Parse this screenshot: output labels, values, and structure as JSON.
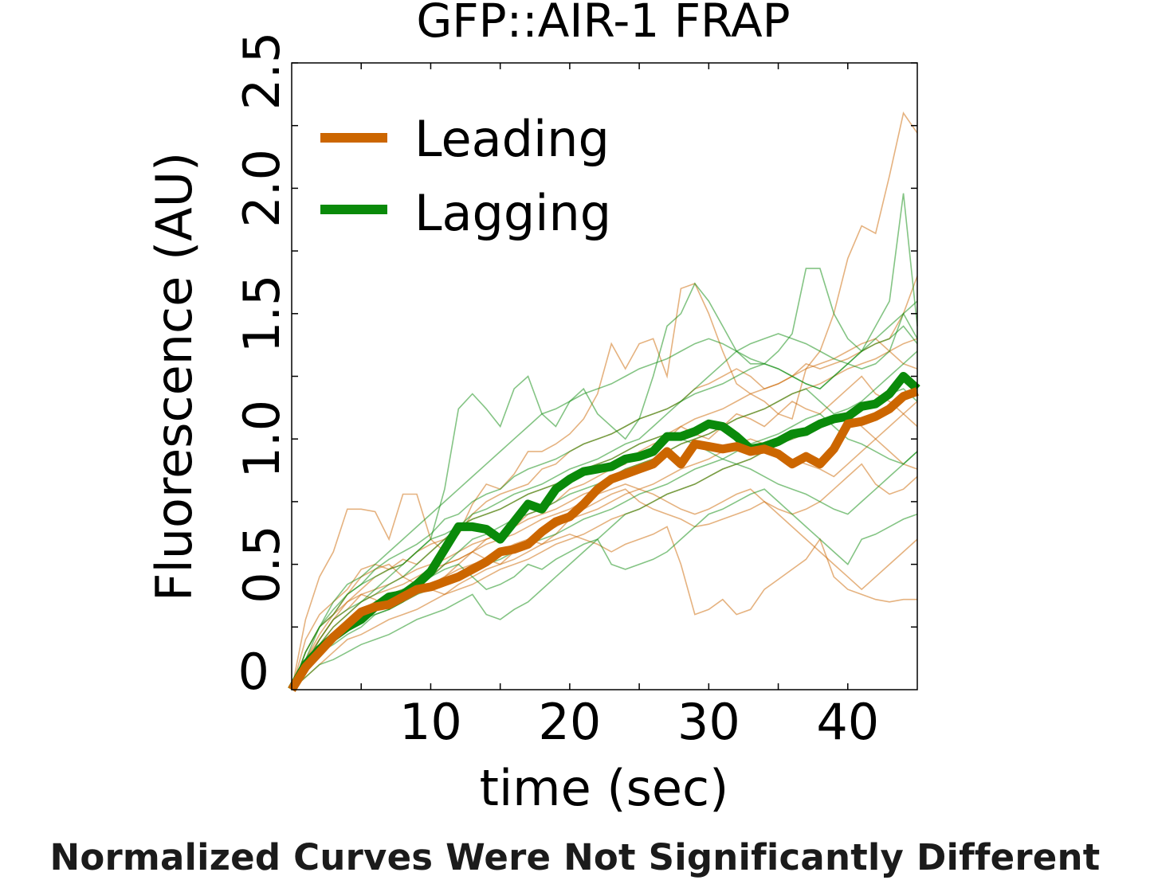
{
  "caption": "Normalized Curves Were Not Significantly Different",
  "chart_data": {
    "type": "line",
    "title": "GFP::AIR-1 FRAP",
    "xlabel": "time (sec)",
    "ylabel": "Fluorescence (AU)",
    "xlim": [
      0,
      45
    ],
    "ylim": [
      0,
      2.5
    ],
    "xticks": [
      10,
      20,
      30,
      40
    ],
    "xtick_labels": [
      "10",
      "20",
      "30",
      "40"
    ],
    "yticks": [
      0,
      0.5,
      1.0,
      1.5,
      2.0,
      2.5
    ],
    "ytick_labels": [
      "0",
      "0.5",
      "1.0",
      "1.5",
      "2.0",
      "2.5"
    ],
    "grid": false,
    "legend": "upper-left",
    "colors": {
      "leading": "#cc6600",
      "lagging": "#0a8a0a"
    },
    "x": [
      0,
      1,
      2,
      3,
      4,
      5,
      6,
      7,
      8,
      9,
      10,
      11,
      12,
      13,
      14,
      15,
      16,
      17,
      18,
      19,
      20,
      21,
      22,
      23,
      24,
      25,
      26,
      27,
      28,
      29,
      30,
      31,
      32,
      33,
      34,
      35,
      36,
      37,
      38,
      39,
      40,
      41,
      42,
      43,
      44,
      45
    ],
    "series": [
      {
        "name": "Leading",
        "color": "#cc6600",
        "values": [
          0,
          0.09,
          0.15,
          0.21,
          0.26,
          0.31,
          0.33,
          0.34,
          0.37,
          0.4,
          0.41,
          0.43,
          0.45,
          0.48,
          0.51,
          0.55,
          0.56,
          0.58,
          0.63,
          0.67,
          0.69,
          0.74,
          0.8,
          0.84,
          0.86,
          0.88,
          0.9,
          0.95,
          0.9,
          0.98,
          0.97,
          0.96,
          0.97,
          0.95,
          0.96,
          0.94,
          0.9,
          0.93,
          0.9,
          0.96,
          1.06,
          1.07,
          1.09,
          1.12,
          1.17,
          1.19
        ]
      },
      {
        "name": "Lagging",
        "color": "#0a8a0a",
        "values": [
          0,
          0.1,
          0.16,
          0.21,
          0.25,
          0.28,
          0.33,
          0.37,
          0.38,
          0.42,
          0.47,
          0.56,
          0.65,
          0.65,
          0.64,
          0.6,
          0.67,
          0.74,
          0.72,
          0.8,
          0.84,
          0.87,
          0.88,
          0.89,
          0.92,
          0.93,
          0.95,
          1.01,
          1.01,
          1.03,
          1.06,
          1.05,
          1.01,
          0.96,
          0.97,
          0.99,
          1.02,
          1.03,
          1.06,
          1.08,
          1.09,
          1.13,
          1.14,
          1.18,
          1.25,
          1.2
        ]
      }
    ],
    "individual_traces": {
      "leading": [
        [
          0,
          0.28,
          0.45,
          0.55,
          0.72,
          0.72,
          0.71,
          0.6,
          0.78,
          0.78,
          0.6,
          0.55,
          0.62,
          0.74,
          0.82,
          0.8,
          0.86,
          0.95,
          0.95,
          0.98,
          1.02,
          1.08,
          1.18,
          1.38,
          1.28,
          1.38,
          1.4,
          1.25,
          1.6,
          1.62,
          1.5,
          1.35,
          1.22,
          1.18,
          1.15,
          1.1,
          1.08,
          1.28,
          1.35,
          1.5,
          1.72,
          1.85,
          1.82,
          2.05,
          2.3,
          2.22
        ],
        [
          0,
          0.2,
          0.3,
          0.35,
          0.4,
          0.48,
          0.5,
          0.48,
          0.52,
          0.5,
          0.55,
          0.6,
          0.62,
          0.7,
          0.75,
          0.78,
          0.8,
          0.82,
          0.88,
          0.9,
          0.95,
          0.98,
          1.0,
          1.02,
          1.05,
          1.08,
          1.1,
          1.12,
          1.15,
          1.2,
          1.22,
          1.25,
          1.28,
          1.25,
          1.2,
          1.22,
          1.25,
          1.3,
          1.28,
          1.3,
          1.32,
          1.35,
          1.38,
          1.4,
          1.5,
          1.65
        ],
        [
          0,
          0.15,
          0.25,
          0.3,
          0.35,
          0.4,
          0.45,
          0.48,
          0.5,
          0.55,
          0.58,
          0.6,
          0.65,
          0.68,
          0.7,
          0.72,
          0.75,
          0.78,
          0.8,
          0.82,
          0.85,
          0.88,
          0.9,
          0.92,
          0.95,
          0.98,
          1.0,
          1.02,
          1.05,
          1.08,
          1.1,
          1.12,
          1.15,
          1.18,
          1.2,
          1.22,
          1.25,
          1.28,
          1.3,
          1.32,
          1.35,
          1.38,
          1.4,
          1.35,
          1.3,
          1.28
        ],
        [
          0,
          0.12,
          0.2,
          0.28,
          0.32,
          0.38,
          0.4,
          0.42,
          0.45,
          0.48,
          0.5,
          0.52,
          0.55,
          0.58,
          0.6,
          0.62,
          0.65,
          0.68,
          0.7,
          0.72,
          0.75,
          0.78,
          0.8,
          0.85,
          0.88,
          0.9,
          0.92,
          0.95,
          0.98,
          1.0,
          1.02,
          1.05,
          1.08,
          1.1,
          1.12,
          1.15,
          1.18,
          1.2,
          1.22,
          1.25,
          1.28,
          1.3,
          1.32,
          1.35,
          1.38,
          1.4
        ],
        [
          0,
          0.1,
          0.18,
          0.22,
          0.28,
          0.32,
          0.35,
          0.38,
          0.4,
          0.42,
          0.45,
          0.5,
          0.52,
          0.55,
          0.6,
          0.62,
          0.65,
          0.7,
          0.72,
          0.75,
          0.8,
          0.82,
          0.85,
          0.88,
          0.9,
          0.95,
          0.98,
          1.0,
          1.05,
          1.02,
          1.0,
          1.05,
          1.1,
          1.08,
          1.05,
          1.1,
          1.15,
          1.12,
          1.1,
          1.15,
          1.2,
          1.25,
          1.18,
          1.15,
          1.1,
          1.05
        ],
        [
          0,
          0.08,
          0.15,
          0.2,
          0.25,
          0.3,
          0.32,
          0.35,
          0.38,
          0.4,
          0.42,
          0.45,
          0.48,
          0.5,
          0.52,
          0.55,
          0.58,
          0.6,
          0.62,
          0.65,
          0.68,
          0.7,
          0.72,
          0.75,
          0.78,
          0.8,
          0.82,
          0.85,
          0.88,
          0.9,
          0.92,
          0.95,
          0.98,
          1.0,
          0.98,
          0.95,
          0.92,
          0.9,
          0.88,
          0.85,
          0.9,
          0.95,
          1.0,
          1.05,
          1.1,
          1.15
        ],
        [
          0,
          0.1,
          0.2,
          0.28,
          0.35,
          0.38,
          0.36,
          0.32,
          0.35,
          0.38,
          0.42,
          0.45,
          0.5,
          0.55,
          0.52,
          0.5,
          0.55,
          0.6,
          0.58,
          0.62,
          0.68,
          0.72,
          0.75,
          0.78,
          0.8,
          0.75,
          0.72,
          0.7,
          0.68,
          0.65,
          0.66,
          0.68,
          0.7,
          0.72,
          0.75,
          0.72,
          0.7,
          0.72,
          0.75,
          0.8,
          0.85,
          0.9,
          0.82,
          0.78,
          0.8,
          0.85
        ],
        [
          0,
          0.05,
          0.1,
          0.15,
          0.2,
          0.22,
          0.25,
          0.28,
          0.3,
          0.32,
          0.35,
          0.38,
          0.4,
          0.42,
          0.45,
          0.48,
          0.5,
          0.52,
          0.55,
          0.58,
          0.6,
          0.62,
          0.65,
          0.68,
          0.7,
          0.72,
          0.75,
          0.78,
          0.8,
          0.82,
          0.85,
          0.88,
          0.9,
          0.92,
          0.95,
          0.98,
          1.0,
          1.02,
          1.05,
          1.08,
          1.1,
          1.05,
          1.0,
          0.95,
          0.9,
          0.88
        ],
        [
          0,
          0.12,
          0.22,
          0.3,
          0.38,
          0.45,
          0.48,
          0.5,
          0.45,
          0.42,
          0.4,
          0.38,
          0.42,
          0.45,
          0.48,
          0.5,
          0.52,
          0.55,
          0.58,
          0.6,
          0.62,
          0.6,
          0.58,
          0.55,
          0.58,
          0.6,
          0.62,
          0.65,
          0.5,
          0.3,
          0.32,
          0.36,
          0.3,
          0.32,
          0.4,
          0.44,
          0.48,
          0.52,
          0.6,
          0.45,
          0.4,
          0.38,
          0.36,
          0.35,
          0.36,
          0.36
        ],
        [
          0,
          0.1,
          0.18,
          0.25,
          0.3,
          0.35,
          0.38,
          0.4,
          0.42,
          0.45,
          0.48,
          0.5,
          0.52,
          0.55,
          0.58,
          0.6,
          0.62,
          0.65,
          0.68,
          0.7,
          0.72,
          0.75,
          0.78,
          0.8,
          0.82,
          0.8,
          0.78,
          0.75,
          0.72,
          0.7,
          0.72,
          0.75,
          0.78,
          0.8,
          0.75,
          0.7,
          0.65,
          0.6,
          0.55,
          0.5,
          0.45,
          0.4,
          0.45,
          0.5,
          0.55,
          0.6
        ]
      ],
      "lagging": [
        [
          0,
          0.12,
          0.25,
          0.3,
          0.38,
          0.42,
          0.45,
          0.48,
          0.5,
          0.55,
          0.6,
          0.8,
          1.12,
          1.18,
          1.12,
          1.05,
          1.2,
          1.25,
          1.1,
          1.05,
          1.15,
          1.2,
          1.1,
          1.05,
          1.0,
          1.08,
          1.25,
          1.45,
          1.5,
          1.62,
          1.55,
          1.45,
          1.35,
          1.3,
          1.3,
          1.35,
          1.42,
          1.68,
          1.68,
          1.5,
          1.4,
          1.35,
          1.45,
          1.55,
          1.98,
          1.45
        ],
        [
          0,
          0.15,
          0.25,
          0.32,
          0.38,
          0.42,
          0.48,
          0.52,
          0.55,
          0.58,
          0.62,
          0.68,
          0.7,
          0.75,
          0.78,
          0.8,
          0.85,
          0.88,
          0.9,
          0.92,
          0.95,
          0.98,
          1.0,
          1.02,
          1.05,
          1.08,
          1.1,
          1.12,
          1.15,
          1.18,
          1.2,
          1.22,
          1.25,
          1.28,
          1.3,
          1.28,
          1.25,
          1.22,
          1.2,
          1.25,
          1.3,
          1.35,
          1.38,
          1.4,
          1.45,
          1.38
        ],
        [
          0,
          0.1,
          0.2,
          0.28,
          0.32,
          0.35,
          0.38,
          0.42,
          0.45,
          0.5,
          0.55,
          0.6,
          0.65,
          0.7,
          0.72,
          0.75,
          0.78,
          0.8,
          0.82,
          0.85,
          0.88,
          0.9,
          0.92,
          0.95,
          0.98,
          1.0,
          1.05,
          1.1,
          1.15,
          1.2,
          1.25,
          1.3,
          1.35,
          1.38,
          1.4,
          1.42,
          1.4,
          1.38,
          1.35,
          1.32,
          1.3,
          1.28,
          1.3,
          1.35,
          1.5,
          1.55
        ],
        [
          0,
          0.12,
          0.18,
          0.22,
          0.25,
          0.3,
          0.35,
          0.38,
          0.4,
          0.42,
          0.45,
          0.5,
          0.55,
          0.6,
          0.62,
          0.65,
          0.68,
          0.7,
          0.72,
          0.75,
          0.78,
          0.8,
          0.82,
          0.85,
          0.88,
          0.9,
          0.92,
          0.95,
          0.98,
          1.0,
          1.02,
          1.05,
          1.08,
          1.1,
          1.12,
          1.15,
          1.18,
          1.2,
          1.15,
          1.1,
          1.12,
          1.15,
          1.2,
          1.25,
          1.3,
          1.35
        ],
        [
          0,
          0.08,
          0.15,
          0.2,
          0.25,
          0.28,
          0.3,
          0.32,
          0.35,
          0.38,
          0.4,
          0.42,
          0.45,
          0.48,
          0.5,
          0.52,
          0.55,
          0.58,
          0.6,
          0.62,
          0.65,
          0.68,
          0.7,
          0.72,
          0.75,
          0.78,
          0.8,
          0.82,
          0.85,
          0.88,
          0.9,
          0.92,
          0.95,
          0.98,
          1.0,
          1.02,
          1.05,
          1.08,
          1.1,
          1.05,
          1.0,
          0.98,
          0.95,
          0.92,
          0.9,
          0.95
        ],
        [
          0,
          0.1,
          0.15,
          0.18,
          0.22,
          0.25,
          0.3,
          0.32,
          0.35,
          0.4,
          0.45,
          0.48,
          0.5,
          0.45,
          0.4,
          0.42,
          0.45,
          0.5,
          0.48,
          0.52,
          0.55,
          0.58,
          0.6,
          0.5,
          0.48,
          0.5,
          0.52,
          0.55,
          0.6,
          0.65,
          0.7,
          0.72,
          0.75,
          0.78,
          0.8,
          0.75,
          0.7,
          0.65,
          0.6,
          0.55,
          0.5,
          0.6,
          0.62,
          0.65,
          0.68,
          0.7
        ],
        [
          0,
          0.05,
          0.1,
          0.12,
          0.15,
          0.18,
          0.2,
          0.22,
          0.25,
          0.28,
          0.3,
          0.32,
          0.35,
          0.38,
          0.3,
          0.28,
          0.32,
          0.35,
          0.4,
          0.45,
          0.5,
          0.55,
          0.6,
          0.65,
          0.7,
          0.72,
          0.75,
          0.78,
          0.8,
          0.82,
          0.85,
          0.88,
          0.9,
          0.92,
          0.95,
          0.98,
          1.0,
          1.02,
          1.05,
          1.08,
          1.1,
          1.12,
          1.15,
          1.18,
          1.2,
          1.15
        ],
        [
          0,
          0.15,
          0.25,
          0.35,
          0.42,
          0.45,
          0.5,
          0.55,
          0.6,
          0.65,
          0.7,
          0.75,
          0.8,
          0.85,
          0.9,
          0.95,
          1.0,
          1.05,
          1.1,
          1.12,
          1.15,
          1.18,
          1.2,
          1.22,
          1.25,
          1.28,
          1.3,
          1.32,
          1.35,
          1.38,
          1.4,
          1.38,
          1.35,
          1.32,
          1.3,
          1.28,
          1.25,
          1.22,
          1.2,
          1.25,
          1.3,
          1.35,
          1.4,
          1.45,
          1.5,
          1.4
        ],
        [
          0,
          0.1,
          0.18,
          0.25,
          0.3,
          0.35,
          0.4,
          0.45,
          0.5,
          0.55,
          0.6,
          0.62,
          0.65,
          0.68,
          0.7,
          0.72,
          0.75,
          0.78,
          0.8,
          0.82,
          0.85,
          0.88,
          0.9,
          0.92,
          0.95,
          0.98,
          1.0,
          1.02,
          1.0,
          0.98,
          0.95,
          0.92,
          0.9,
          0.88,
          0.85,
          0.82,
          0.8,
          0.78,
          0.75,
          0.72,
          0.7,
          0.75,
          0.8,
          0.85,
          0.9,
          0.95
        ]
      ]
    }
  }
}
